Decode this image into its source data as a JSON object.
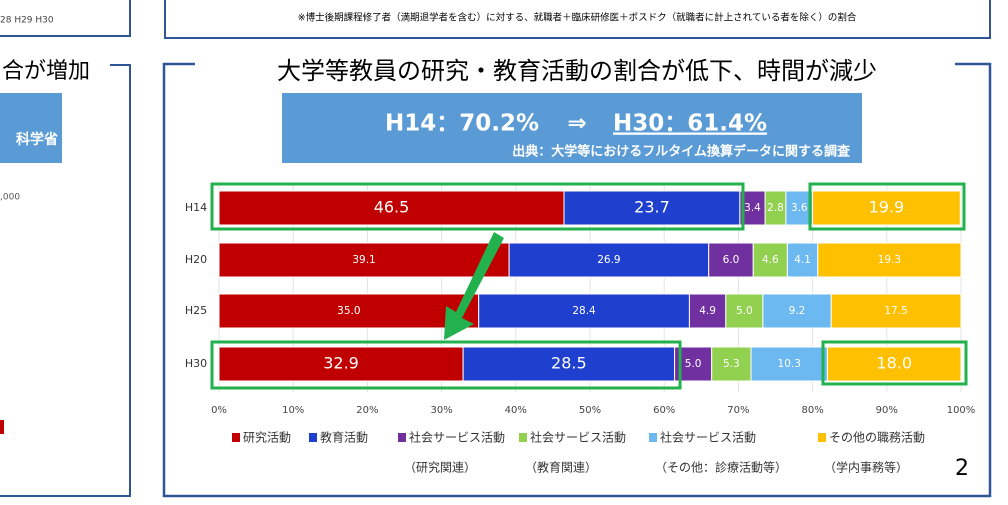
{
  "top_note": "※博士後期課程修了者（満期退学者を含む）に対する、就職者＋臨床研修医＋ポスドク（就職者に計上されている者を除く）の割合",
  "left_panel": {
    "title": "合が増加",
    "header": "科学省",
    "axis_label": ",000",
    "x_labels": "28  H29  H30"
  },
  "panel_title": "大学等教員の研究・教育活動の割合が低下、時間が減少",
  "banner": {
    "headline_left": "H14：70.2%",
    "arrow": "⇒",
    "headline_right": "H30：61.4%",
    "source": "出典：大学等におけるフルタイム換算データに関する調査"
  },
  "page_number": "2",
  "chart_data": {
    "type": "stacked-bar-horizontal",
    "categories": [
      "H14",
      "H20",
      "H25",
      "H30"
    ],
    "series": [
      {
        "name": "研究活動",
        "color": "#c00000",
        "values": [
          46.5,
          39.1,
          35.0,
          32.9
        ],
        "value_labels": [
          "46.5",
          "39.1",
          "35.0",
          "32.9"
        ]
      },
      {
        "name": "教育活動",
        "color": "#1f3fcf",
        "values": [
          23.7,
          26.9,
          28.4,
          28.5
        ],
        "value_labels": [
          "23.7",
          "26.9",
          "28.4",
          "28.5"
        ]
      },
      {
        "name": "社会サービス活動",
        "sublabel": "（研究関連）",
        "color": "#7030a0",
        "values": [
          3.4,
          6.0,
          4.9,
          5.0
        ],
        "value_labels": [
          "3.4",
          "6.0",
          "4.9",
          "5.0"
        ]
      },
      {
        "name": "社会サービス活動",
        "sublabel": "（教育関連）",
        "color": "#92d050",
        "values": [
          2.8,
          4.6,
          5.0,
          5.3
        ],
        "value_labels": [
          "2.8",
          "4.6",
          "5.0",
          "5.3"
        ]
      },
      {
        "name": "社会サービス活動",
        "sublabel": "（その他：診療活動等）",
        "color": "#6cb8f0",
        "values": [
          3.6,
          4.1,
          9.2,
          10.3
        ],
        "value_labels": [
          "3.6",
          "4.1",
          "9.2",
          "10.3"
        ]
      },
      {
        "name": "その他の職務活動",
        "sublabel": "（学内事務等）",
        "color": "#ffc000",
        "values": [
          19.9,
          19.3,
          17.5,
          18.0
        ],
        "value_labels": [
          "19.9",
          "19.3",
          "17.5",
          "18.0"
        ]
      }
    ],
    "xlim": [
      0,
      100
    ],
    "xticks": [
      {
        "value": 0,
        "label": "0%"
      },
      {
        "value": 10,
        "label": "10%"
      },
      {
        "value": 20,
        "label": "20%"
      },
      {
        "value": 30,
        "label": "30%"
      },
      {
        "value": 40,
        "label": "40%"
      },
      {
        "value": 50,
        "label": "50%"
      },
      {
        "value": 60,
        "label": "60%"
      },
      {
        "value": 70,
        "label": "70%"
      },
      {
        "value": 80,
        "label": "80%"
      },
      {
        "value": 90,
        "label": "90%"
      },
      {
        "value": 100,
        "label": "100%"
      }
    ],
    "grid": true
  }
}
